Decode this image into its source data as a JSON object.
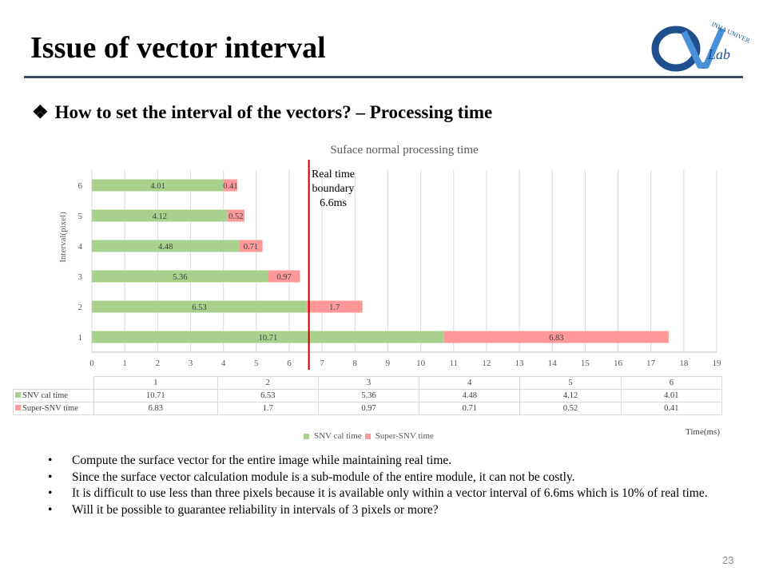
{
  "slide": {
    "title": "Issue of vector interval",
    "subheading_bullet": "❖",
    "subheading": "How to set the interval of the vectors? – Processing time",
    "page_number": "23"
  },
  "logo": {
    "university_text": "INHA UNIVERSITY",
    "lab_text": "Lab",
    "colors": {
      "ring": "#1f4f8c",
      "accent": "#4a90d9"
    }
  },
  "annotation": {
    "lines": [
      "Real time",
      "boundary",
      "6.6ms"
    ]
  },
  "table": {
    "headers": [
      "1",
      "2",
      "3",
      "4",
      "5",
      "6"
    ],
    "rows": [
      {
        "label": "SNV cal time",
        "values": [
          "10.71",
          "6.53",
          "5.36",
          "4.48",
          "4.12",
          "4.01"
        ]
      },
      {
        "label": "Super-SNV time",
        "values": [
          "6.83",
          "1.7",
          "0.97",
          "0.71",
          "0.52",
          "0.41"
        ]
      }
    ]
  },
  "legend": {
    "items": [
      "SNV cal time",
      "Super-SNV time"
    ]
  },
  "time_axis_label": "Time(ms)",
  "bullets": [
    "Compute the surface vector for the entire image while maintaining  real time.",
    "Since the surface vector calculation module is a sub-module of the entire module, it can not be costly.",
    "It is difficult to use less than three pixels because it is available only within a vector interval of 6.6ms which is 10% of real time.",
    "Will  it  be possible to guarantee reliability  in intervals  of 3 pixels  or more?"
  ],
  "chart_data": {
    "type": "bar",
    "orientation": "horizontal",
    "stacked": true,
    "title": "Suface normal processing time",
    "xlabel": "Time(ms)",
    "ylabel": "Interval(pixel)",
    "categories": [
      "1",
      "2",
      "3",
      "4",
      "5",
      "6"
    ],
    "series": [
      {
        "name": "SNV cal time",
        "color": "#a9d18e",
        "values": [
          10.71,
          6.53,
          5.36,
          4.48,
          4.12,
          4.01
        ]
      },
      {
        "name": "Super-SNV time",
        "color": "#ff9999",
        "values": [
          6.83,
          1.7,
          0.97,
          0.71,
          0.52,
          0.41
        ]
      }
    ],
    "xlim": [
      0,
      19
    ],
    "xticks": [
      "0",
      "1",
      "2",
      "3",
      "4",
      "5",
      "6",
      "7",
      "8",
      "9",
      "10",
      "11",
      "12",
      "13",
      "14",
      "15",
      "16",
      "17",
      "18",
      "19"
    ],
    "reference_line": {
      "value": 6.6,
      "color": "#c00000"
    },
    "grid": "vertical",
    "legend": "bottom"
  }
}
